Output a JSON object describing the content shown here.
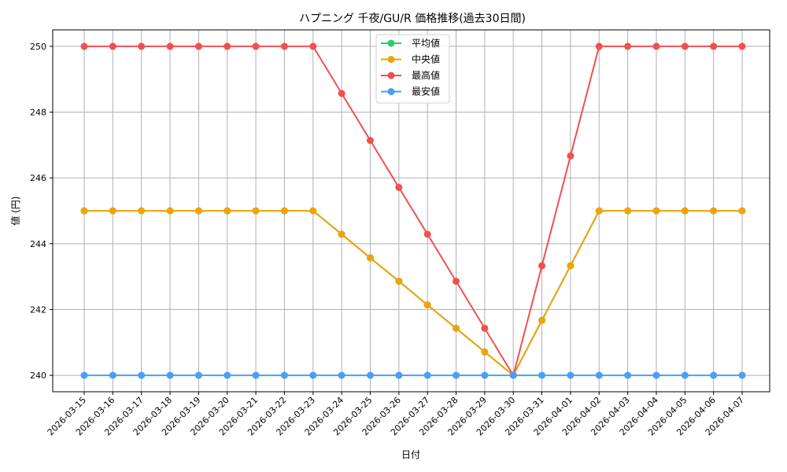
{
  "chart_data": {
    "type": "line",
    "title": "ハプニング 千夜/GU/R 価格推移(過去30日間)",
    "xlabel": "日付",
    "ylabel": "値 (円)",
    "ylim": [
      239.5,
      250.5
    ],
    "yticks": [
      240,
      242,
      244,
      246,
      248,
      250
    ],
    "grid": true,
    "legend_position": "top-center",
    "categories": [
      "2026-03-15",
      "2026-03-16",
      "2026-03-17",
      "2026-03-18",
      "2026-03-19",
      "2026-03-20",
      "2026-03-21",
      "2026-03-22",
      "2026-03-23",
      "2026-03-24",
      "2026-03-25",
      "2026-03-26",
      "2026-03-27",
      "2026-03-28",
      "2026-03-29",
      "2026-03-30",
      "2026-03-31",
      "2026-04-01",
      "2026-04-02",
      "2026-04-03",
      "2026-04-04",
      "2026-04-05",
      "2026-04-06",
      "2026-04-07"
    ],
    "series": [
      {
        "name": "平均値",
        "color": "#2ecc71",
        "values": [
          245,
          245,
          245,
          245,
          245,
          245,
          245,
          245,
          245,
          244.29,
          243.57,
          242.86,
          242.14,
          241.43,
          240.71,
          240,
          241.67,
          243.33,
          245,
          245,
          245,
          245,
          245,
          245
        ]
      },
      {
        "name": "中央値",
        "color": "#f0a30a",
        "values": [
          245,
          245,
          245,
          245,
          245,
          245,
          245,
          245,
          245,
          244.29,
          243.57,
          242.86,
          242.14,
          241.43,
          240.71,
          240,
          241.67,
          243.33,
          245,
          245,
          245,
          245,
          245,
          245
        ]
      },
      {
        "name": "最高値",
        "color": "#f05050",
        "values": [
          250,
          250,
          250,
          250,
          250,
          250,
          250,
          250,
          250,
          248.57,
          247.14,
          245.71,
          244.29,
          242.86,
          241.43,
          240,
          243.33,
          246.67,
          250,
          250,
          250,
          250,
          250,
          250
        ]
      },
      {
        "name": "最安値",
        "color": "#4a9ff5",
        "values": [
          240,
          240,
          240,
          240,
          240,
          240,
          240,
          240,
          240,
          240,
          240,
          240,
          240,
          240,
          240,
          240,
          240,
          240,
          240,
          240,
          240,
          240,
          240,
          240
        ]
      }
    ]
  }
}
